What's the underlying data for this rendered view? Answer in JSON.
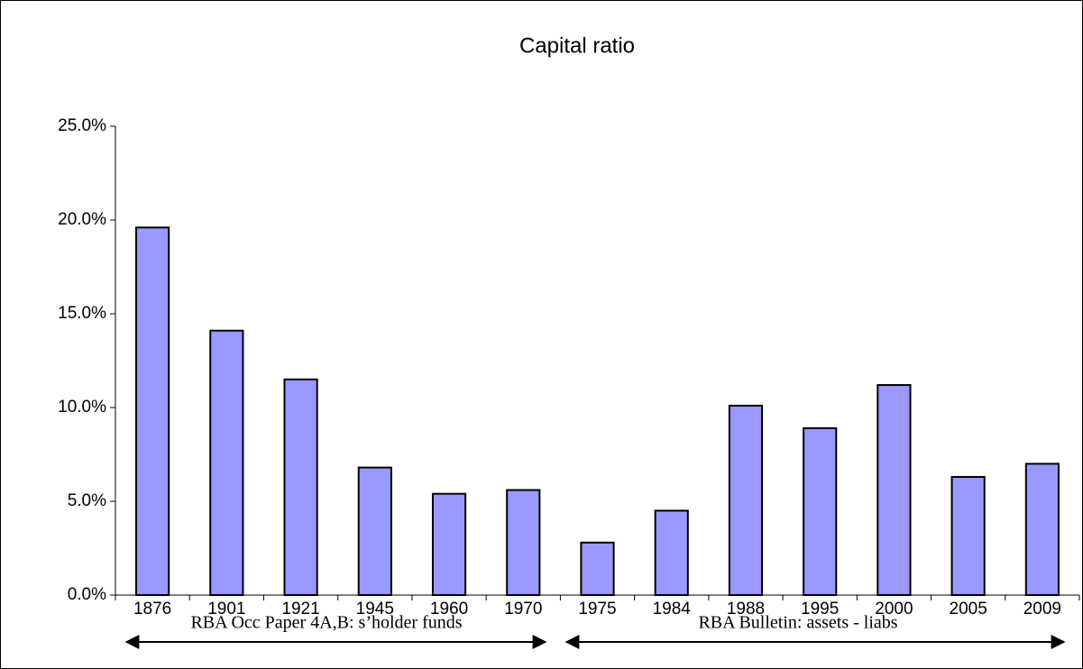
{
  "chart_data": {
    "type": "bar",
    "title": "Capital ratio",
    "categories": [
      "1876",
      "1901",
      "1921",
      "1945",
      "1960",
      "1970",
      "1975",
      "1984",
      "1988",
      "1995",
      "2000",
      "2005",
      "2009"
    ],
    "values": [
      19.6,
      14.1,
      11.5,
      6.8,
      5.4,
      5.6,
      2.8,
      4.5,
      10.1,
      8.9,
      11.2,
      6.3,
      7.0
    ],
    "color": "#9999ff",
    "ylim": [
      0,
      25
    ],
    "yticks": [
      {
        "value": 0,
        "label": "0.0%"
      },
      {
        "value": 5,
        "label": "5.0%"
      },
      {
        "value": 10,
        "label": "10.0%"
      },
      {
        "value": 15,
        "label": "15.0%"
      },
      {
        "value": 20,
        "label": "20.0%"
      },
      {
        "value": 25,
        "label": "25.0%"
      }
    ],
    "grid": false,
    "annotations": [
      "RBA Occ Paper 4A,B: s’holder funds",
      "RBA Bulletin: assets - liabs"
    ]
  }
}
